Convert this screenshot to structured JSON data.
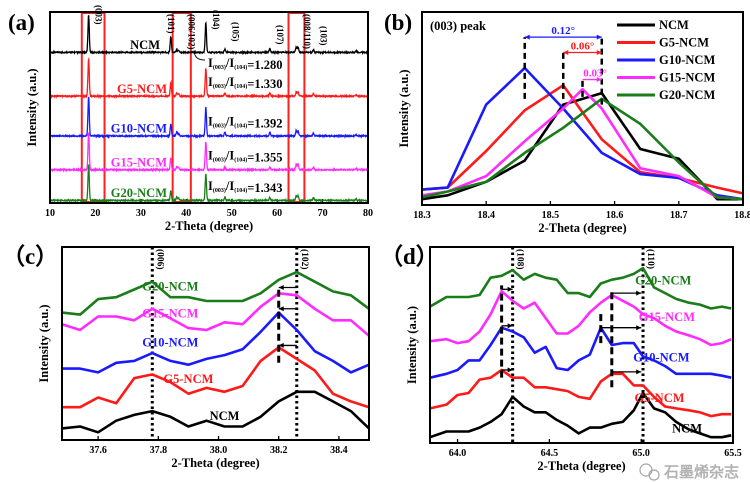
{
  "colors": {
    "NCM": "#000000",
    "G5-NCM": "#ff1a1a",
    "G10-NCM": "#1a1aff",
    "G15-NCM": "#ff2bff",
    "G20-NCM": "#1a7d1a",
    "highlight": "#ff2020"
  },
  "watermark": "石墨烯杂志",
  "chart_data": [
    {
      "panel_label": "(a)",
      "type": "line",
      "xlabel": "2-Theta (degree)",
      "ylabel": "Intensity (a.u.)",
      "xlim": [
        10,
        80
      ],
      "ylim": [
        0,
        480
      ],
      "xtick_labels": [
        "10",
        "20",
        "30",
        "40",
        "50",
        "60",
        "70",
        "80"
      ],
      "highlight_ranges": [
        [
          17,
          22
        ],
        [
          37,
          41
        ],
        [
          62.5,
          66
        ]
      ],
      "peak_labels": [
        {
          "label": "(003)",
          "x": 18.5
        },
        {
          "label": "(101)",
          "x": 36.6
        },
        {
          "label": "(006/102)",
          "x": 38.3
        },
        {
          "label": "(104)",
          "x": 44.3
        },
        {
          "label": "(105)",
          "x": 48.6
        },
        {
          "label": "(107)",
          "x": 58.4
        },
        {
          "label": "(008/110)",
          "x": 64.4
        },
        {
          "label": "(103)",
          "x": 68.0
        }
      ],
      "ratio_label": [
        "I",
        "(003)",
        "/I",
        "(104)"
      ],
      "series": [
        {
          "name": "NCM",
          "offset": 377,
          "ratio": "=1.280",
          "peaks": [
            [
              18.5,
              95
            ],
            [
              36.6,
              40
            ],
            [
              37.9,
              6
            ],
            [
              38.3,
              6
            ],
            [
              44.3,
              74
            ],
            [
              48.5,
              8
            ],
            [
              58.4,
              10
            ],
            [
              64.2,
              13
            ],
            [
              64.6,
              13
            ],
            [
              68.0,
              7
            ],
            [
              77.4,
              3
            ]
          ]
        },
        {
          "name": "G5-NCM",
          "offset": 267,
          "ratio": "=1.330",
          "peaks": [
            [
              18.5,
              95
            ],
            [
              36.6,
              35
            ],
            [
              37.9,
              8
            ],
            [
              38.3,
              6
            ],
            [
              44.3,
              71
            ],
            [
              48.5,
              7
            ],
            [
              58.4,
              7
            ],
            [
              64.2,
              11
            ],
            [
              64.6,
              11
            ],
            [
              68.0,
              7
            ],
            [
              77.4,
              3
            ]
          ]
        },
        {
          "name": "G10-NCM",
          "offset": 167,
          "ratio": "=1.392",
          "peaks": [
            [
              18.5,
              100
            ],
            [
              36.6,
              30
            ],
            [
              37.9,
              11
            ],
            [
              38.3,
              6
            ],
            [
              44.3,
              72
            ],
            [
              48.5,
              9
            ],
            [
              58.4,
              9
            ],
            [
              64.2,
              13
            ],
            [
              64.6,
              13
            ],
            [
              68.0,
              7
            ],
            [
              77.4,
              3
            ]
          ]
        },
        {
          "name": "G15-NCM",
          "offset": 82,
          "ratio": "=1.355",
          "peaks": [
            [
              18.5,
              95
            ],
            [
              36.6,
              30
            ],
            [
              37.9,
              8
            ],
            [
              38.3,
              6
            ],
            [
              44.3,
              70
            ],
            [
              48.5,
              6
            ],
            [
              58.4,
              7
            ],
            [
              64.2,
              14
            ],
            [
              64.6,
              14
            ],
            [
              68.0,
              7
            ],
            [
              77.4,
              3
            ]
          ]
        },
        {
          "name": "G20-NCM",
          "offset": 5,
          "ratio": "=1.343",
          "peaks": [
            [
              18.5,
              90
            ],
            [
              36.6,
              25
            ],
            [
              37.9,
              8
            ],
            [
              38.3,
              6
            ],
            [
              44.3,
              67
            ],
            [
              48.5,
              7
            ],
            [
              58.4,
              7
            ],
            [
              64.2,
              11
            ],
            [
              64.6,
              11
            ],
            [
              68.0,
              7
            ],
            [
              77.4,
              3
            ]
          ]
        }
      ]
    },
    {
      "panel_label": "(b)",
      "type": "line",
      "title": "(003) peak",
      "xlabel": "2-Theta (degree)",
      "ylabel": "Intensity (a.u.)",
      "xlim": [
        18.3,
        18.8
      ],
      "ylim": [
        0,
        100
      ],
      "legend": "top-right",
      "xtick_labels": [
        "18.3",
        "18.4",
        "18.5",
        "18.6",
        "18.7",
        "18.8"
      ],
      "series": [
        {
          "name": "NCM",
          "points": [
            [
              18.3,
              3
            ],
            [
              18.34,
              5
            ],
            [
              18.4,
              12
            ],
            [
              18.46,
              23
            ],
            [
              18.52,
              52
            ],
            [
              18.58,
              58
            ],
            [
              18.64,
              29
            ],
            [
              18.7,
              24
            ],
            [
              18.76,
              3
            ],
            [
              18.8,
              3
            ]
          ]
        },
        {
          "name": "G5-NCM",
          "points": [
            [
              18.3,
              8
            ],
            [
              18.34,
              9
            ],
            [
              18.4,
              28
            ],
            [
              18.46,
              49
            ],
            [
              18.52,
              62
            ],
            [
              18.58,
              34
            ],
            [
              18.64,
              17
            ],
            [
              18.7,
              14
            ],
            [
              18.76,
              9
            ],
            [
              18.8,
              6
            ]
          ]
        },
        {
          "name": "G10-NCM",
          "points": [
            [
              18.3,
              8
            ],
            [
              18.34,
              9
            ],
            [
              18.4,
              52
            ],
            [
              18.46,
              71
            ],
            [
              18.52,
              50
            ],
            [
              18.58,
              27
            ],
            [
              18.64,
              16
            ],
            [
              18.7,
              14
            ],
            [
              18.76,
              5
            ],
            [
              18.8,
              3
            ]
          ]
        },
        {
          "name": "G15-NCM",
          "points": [
            [
              18.3,
              5
            ],
            [
              18.34,
              7
            ],
            [
              18.4,
              15
            ],
            [
              18.46,
              33
            ],
            [
              18.52,
              50
            ],
            [
              18.55,
              60
            ],
            [
              18.58,
              50
            ],
            [
              18.64,
              19
            ],
            [
              18.7,
              15
            ],
            [
              18.76,
              4
            ],
            [
              18.8,
              3
            ]
          ]
        },
        {
          "name": "G20-NCM",
          "points": [
            [
              18.3,
              4
            ],
            [
              18.34,
              7
            ],
            [
              18.4,
              12
            ],
            [
              18.46,
              27
            ],
            [
              18.52,
              40
            ],
            [
              18.58,
              55
            ],
            [
              18.64,
              42
            ],
            [
              18.7,
              22
            ],
            [
              18.76,
              4
            ],
            [
              18.8,
              3
            ]
          ]
        }
      ],
      "dashed_lines": [
        [
          18.46,
          55,
          87
        ],
        [
          18.52,
          55,
          80
        ],
        [
          18.55,
          56,
          66
        ],
        [
          18.58,
          52,
          87
        ]
      ],
      "shifts": [
        {
          "label": "0.12°",
          "from": 18.46,
          "to": 18.58,
          "y": 87,
          "series": "G10-NCM"
        },
        {
          "label": "0.06°",
          "from": 18.52,
          "to": 18.58,
          "y": 79,
          "series": "G5-NCM"
        },
        {
          "label": "0.03°",
          "from": 18.55,
          "to": 18.58,
          "y": 65,
          "series": "G15-NCM"
        }
      ]
    },
    {
      "panel_label": "（c）",
      "type": "line",
      "xlabel": "2-Theta (degree)",
      "ylabel": "Intensity (a.u.)",
      "xlim": [
        37.48,
        38.5
      ],
      "ylim": [
        0,
        100
      ],
      "xtick_labels": [
        "37.6",
        "37.8",
        "38.0",
        "38.2",
        "38.4"
      ],
      "x": [
        37.48,
        37.54,
        37.6,
        37.66,
        37.72,
        37.78,
        37.84,
        37.9,
        37.96,
        38.02,
        38.08,
        38.14,
        38.2,
        38.26,
        38.32,
        38.38,
        38.44,
        38.5
      ],
      "series": [
        {
          "name": "NCM",
          "values": [
            6,
            7,
            4,
            10,
            13,
            15,
            12,
            7,
            10,
            7,
            7,
            12,
            20,
            25,
            25,
            20,
            15,
            6
          ],
          "label_pos": [
            38.02,
            12
          ]
        },
        {
          "name": "G5-NCM",
          "values": [
            17,
            17,
            22,
            19,
            32,
            34,
            30,
            24,
            27,
            25,
            28,
            41,
            48,
            42,
            36,
            24,
            20,
            17
          ],
          "label_pos": [
            37.9,
            31
          ]
        },
        {
          "name": "G10-NCM",
          "values": [
            37,
            37,
            35,
            40,
            41,
            45,
            41,
            39,
            42,
            44,
            47,
            56,
            66,
            57,
            46,
            41,
            35,
            39
          ],
          "label_pos": [
            37.84,
            50
          ]
        },
        {
          "name": "G15-NCM",
          "values": [
            60,
            57,
            64,
            64,
            62,
            68,
            63,
            58,
            57,
            61,
            60,
            69,
            76,
            75,
            68,
            62,
            62,
            54
          ],
          "label_pos": [
            37.84,
            65
          ]
        },
        {
          "name": "G20-NCM",
          "values": [
            66,
            65,
            73,
            74,
            78,
            82,
            74,
            74,
            72,
            72,
            72,
            76,
            83,
            87,
            82,
            77,
            75,
            68
          ],
          "label_pos": [
            37.84,
            79
          ]
        }
      ],
      "reference_lines": [
        {
          "x": 37.78,
          "label": "(006)"
        },
        {
          "x": 38.26,
          "label": "(102)"
        }
      ],
      "dashed_lines": [
        [
          38.2,
          40,
          79
        ]
      ],
      "arrows": [
        [
          38.26,
          38.2,
          79
        ],
        [
          38.26,
          38.2,
          68
        ],
        [
          38.26,
          38.2,
          49
        ]
      ]
    },
    {
      "panel_label": "（d）",
      "type": "line",
      "xlabel": "2-Theta (degree)",
      "ylabel": "Intensity (a.u.)",
      "xlim": [
        63.85,
        65.5
      ],
      "ylim": [
        -2,
        100
      ],
      "xtick_labels": [
        "64.0",
        "64.5",
        "65.0",
        "65.5"
      ],
      "x": [
        63.85,
        63.94,
        64.0,
        64.06,
        64.12,
        64.18,
        64.24,
        64.3,
        64.36,
        64.42,
        64.48,
        64.54,
        64.6,
        64.66,
        64.72,
        64.78,
        64.84,
        64.9,
        64.96,
        65.01,
        65.07,
        65.13,
        65.19,
        65.26,
        65.32,
        65.38,
        65.44,
        65.49
      ],
      "series": [
        {
          "name": "NCM",
          "values": [
            1,
            4,
            4,
            4,
            6,
            9,
            13,
            22,
            17,
            14,
            14,
            10,
            7,
            3,
            6,
            6,
            8,
            9,
            15,
            24,
            16,
            14,
            9,
            5,
            3,
            1,
            1,
            2
          ],
          "label_pos": [
            65.25,
            5
          ]
        },
        {
          "name": "G5-NCM",
          "values": [
            16,
            18,
            23,
            24,
            31,
            32,
            36,
            32,
            32,
            27,
            27,
            26,
            25,
            22,
            21,
            30,
            34,
            34,
            28,
            28,
            22,
            17,
            16,
            15,
            14,
            12,
            13,
            13
          ],
          "label_pos": [
            65.1,
            21
          ]
        },
        {
          "name": "G10-NCM",
          "values": [
            32,
            34,
            36,
            41,
            41,
            49,
            58,
            56,
            53,
            45,
            48,
            37,
            36,
            41,
            44,
            58,
            49,
            50,
            50,
            43,
            41,
            38,
            34,
            34,
            34,
            34,
            33,
            32
          ],
          "label_pos": [
            65.11,
            42
          ]
        },
        {
          "name": "G15-NCM",
          "values": [
            51,
            52,
            50,
            51,
            56,
            65,
            77,
            72,
            68,
            71,
            63,
            55,
            55,
            59,
            66,
            71,
            75,
            72,
            69,
            65,
            63,
            59,
            56,
            54,
            52,
            49,
            50,
            52
          ],
          "label_pos": [
            65.14,
            63
          ]
        },
        {
          "name": "G20-NCM",
          "values": [
            69,
            74,
            74,
            74,
            75,
            84,
            85,
            88,
            83,
            86,
            84,
            83,
            76,
            76,
            74,
            81,
            83,
            84,
            86,
            89,
            79,
            76,
            73,
            71,
            70,
            68,
            69,
            68
          ],
          "label_pos": [
            65.12,
            82
          ]
        }
      ],
      "reference_lines": [
        {
          "x": 64.3,
          "label": "(108)"
        },
        {
          "x": 65.01,
          "label": "(110)"
        }
      ],
      "dashed_lines": [
        [
          64.24,
          32,
          80
        ],
        [
          64.78,
          50,
          67
        ],
        [
          64.84,
          27,
          78
        ]
      ],
      "arrows": [
        [
          64.24,
          64.3,
          78
        ],
        [
          64.24,
          64.3,
          59
        ],
        [
          64.24,
          64.3,
          36
        ],
        [
          64.84,
          65.0,
          76
        ],
        [
          64.78,
          65.0,
          58
        ],
        [
          64.84,
          65.0,
          35
        ]
      ]
    }
  ]
}
